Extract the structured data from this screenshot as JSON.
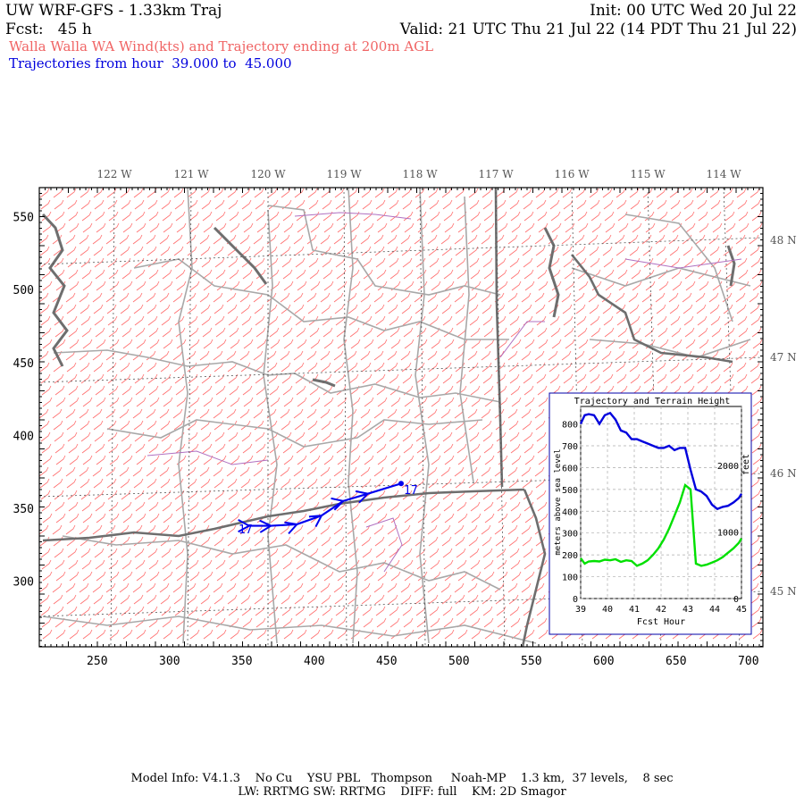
{
  "header": {
    "model_title": "UW WRF-GFS - 1.33km Traj",
    "init": "Init: 00 UTC Wed 20 Jul 22",
    "fcst": "Fcst:   45 h",
    "valid": "Valid: 21 UTC Thu 21 Jul 22 (14 PDT Thu 21 Jul 22)",
    "subtitle": "Walla Walla WA Wind(kts) and Trajectory ending at 200m AGL",
    "traj_hours": "Trajectories from hour  39.000 to  45.000"
  },
  "map": {
    "lon_labels": [
      "122 W",
      "121 W",
      "120 W",
      "119 W",
      "118 W",
      "117 W",
      "116 W",
      "115 W",
      "114 W"
    ],
    "lat_labels": [
      "48 N",
      "47 N",
      "46 N",
      "45 N"
    ],
    "x_ticks": [
      "250",
      "300",
      "350",
      "400",
      "450",
      "500",
      "550",
      "600",
      "650",
      "700"
    ],
    "y_ticks": [
      "550",
      "500",
      "450",
      "400",
      "350",
      "300"
    ],
    "grid_x_range": [
      210,
      710
    ],
    "grid_y_range": [
      255,
      570
    ],
    "wind_barb_color": "#ff6b6b",
    "trajectory_color": "#0000ee",
    "trajectory_start_label": "17",
    "trajectory_end_label": "17",
    "trajectory_points": [
      [
        355,
        338
      ],
      [
        370,
        338
      ],
      [
        388,
        339
      ],
      [
        405,
        345
      ],
      [
        420,
        355
      ],
      [
        437,
        360
      ],
      [
        460,
        367
      ]
    ]
  },
  "inset": {
    "title": "Trajectory and Terrain Height",
    "ylabel_left": "meters above sea level",
    "ylabel_right": "feet",
    "xlabel": "Fcst Hour",
    "x_ticks": [
      "39",
      "40",
      "41",
      "42",
      "43",
      "44",
      "45"
    ],
    "y_ticks_left": [
      "0",
      "100",
      "200",
      "300",
      "400",
      "500",
      "600",
      "700",
      "800"
    ],
    "y_ticks_right": [
      "0",
      "1000",
      "2000"
    ],
    "series_traj_color": "#0000dd",
    "series_terrain_color": "#00e000"
  },
  "chart_data": {
    "type": "line",
    "title": "Trajectory and Terrain Height",
    "xlabel": "Fcst Hour",
    "ylabel": "meters above sea level",
    "xlim": [
      39,
      45
    ],
    "ylim": [
      0,
      880
    ],
    "grid": true,
    "series": [
      {
        "x": [
          39.0,
          39.15,
          39.3,
          39.5,
          39.7,
          39.9,
          40.1,
          40.3,
          40.5,
          40.7,
          40.9,
          41.1,
          41.3,
          41.5,
          41.7,
          41.9,
          42.1,
          42.3,
          42.5,
          42.7,
          42.9,
          43.1,
          43.3,
          43.5,
          43.7,
          43.9,
          44.1,
          44.3,
          44.5,
          44.7,
          44.9,
          45.0
        ],
        "values": [
          800,
          840,
          845,
          840,
          800,
          840,
          850,
          820,
          770,
          760,
          730,
          730,
          720,
          710,
          700,
          690,
          690,
          700,
          680,
          690,
          690,
          590,
          500,
          490,
          470,
          430,
          410,
          420,
          425,
          440,
          460,
          480
        ]
      },
      {
        "x": [
          39.0,
          39.15,
          39.3,
          39.5,
          39.7,
          39.9,
          40.1,
          40.3,
          40.5,
          40.7,
          40.9,
          41.1,
          41.3,
          41.5,
          41.7,
          41.9,
          42.1,
          42.3,
          42.5,
          42.7,
          42.9,
          43.1,
          43.3,
          43.5,
          43.7,
          43.9,
          44.1,
          44.3,
          44.5,
          44.7,
          44.9,
          45.0
        ],
        "values": [
          185,
          160,
          170,
          172,
          170,
          178,
          175,
          180,
          168,
          175,
          172,
          150,
          160,
          175,
          200,
          230,
          270,
          320,
          380,
          440,
          520,
          500,
          160,
          150,
          155,
          165,
          175,
          190,
          210,
          230,
          255,
          275
        ]
      }
    ]
  },
  "footer": {
    "line1": "Model Info: V4.1.3    No Cu    YSU PBL   Thompson     Noah-MP    1.3 km,  37 levels,    8 sec",
    "line2": "LW: RRTMG SW: RRTMG    DIFF: full    KM: 2D Smagor"
  }
}
